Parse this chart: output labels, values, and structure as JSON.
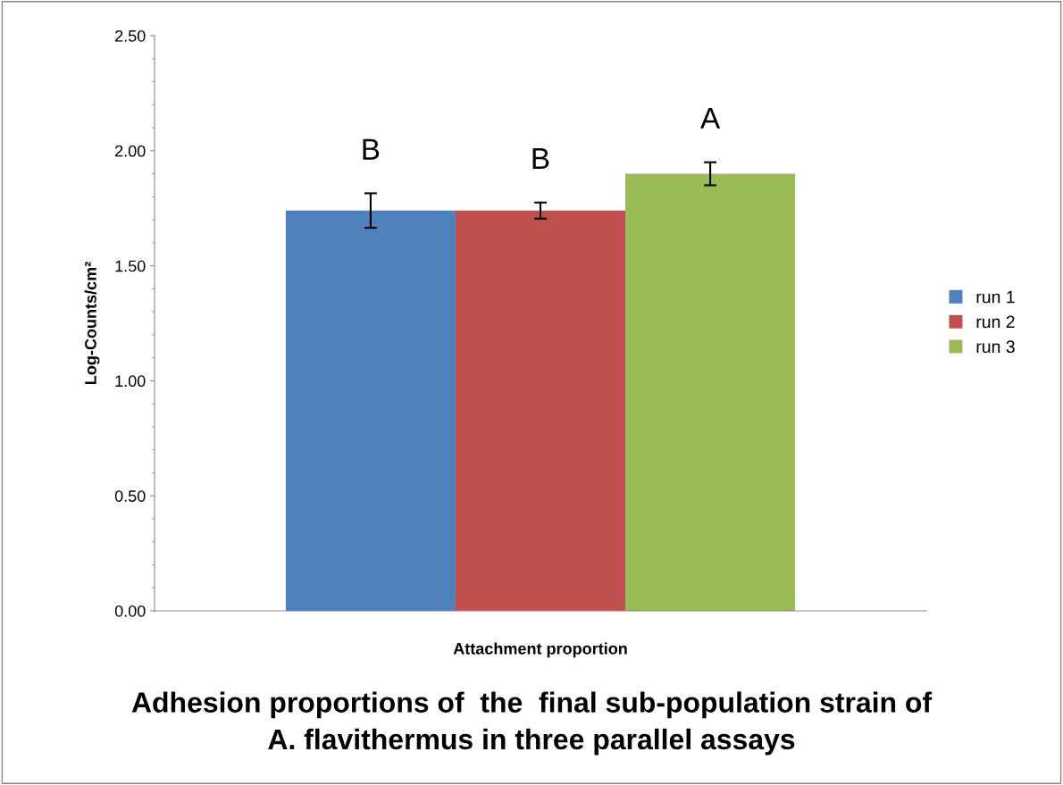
{
  "chart_data": {
    "type": "bar",
    "title": "Adhesion proportions of  the  final sub-population strain of\nA. flavithermus in three parallel assays",
    "xlabel": "Attachment proportion",
    "ylabel": "Log-Counts/cm²",
    "categories": [
      null
    ],
    "series": [
      {
        "name": "run 1",
        "color": "#4f81bd",
        "values": [
          1.74
        ],
        "errors": [
          0.075
        ]
      },
      {
        "name": "run 2",
        "color": "#c0504d",
        "values": [
          1.74
        ],
        "errors": [
          0.035
        ]
      },
      {
        "name": "run 3",
        "color": "#9bbb59",
        "values": [
          1.9
        ],
        "errors": [
          0.05
        ]
      }
    ],
    "annotations": [
      "B",
      "B",
      "A"
    ],
    "ylim": [
      0,
      2.5
    ],
    "yticks": [
      {
        "value": 0,
        "label": "0.00"
      },
      {
        "value": 0.5,
        "label": "0.50"
      },
      {
        "value": 1,
        "label": "1.00"
      },
      {
        "value": 1.5,
        "label": "1.50"
      },
      {
        "value": 2,
        "label": "2.00"
      },
      {
        "value": 2.5,
        "label": "2.50"
      }
    ],
    "grid": false,
    "legend": "right"
  }
}
